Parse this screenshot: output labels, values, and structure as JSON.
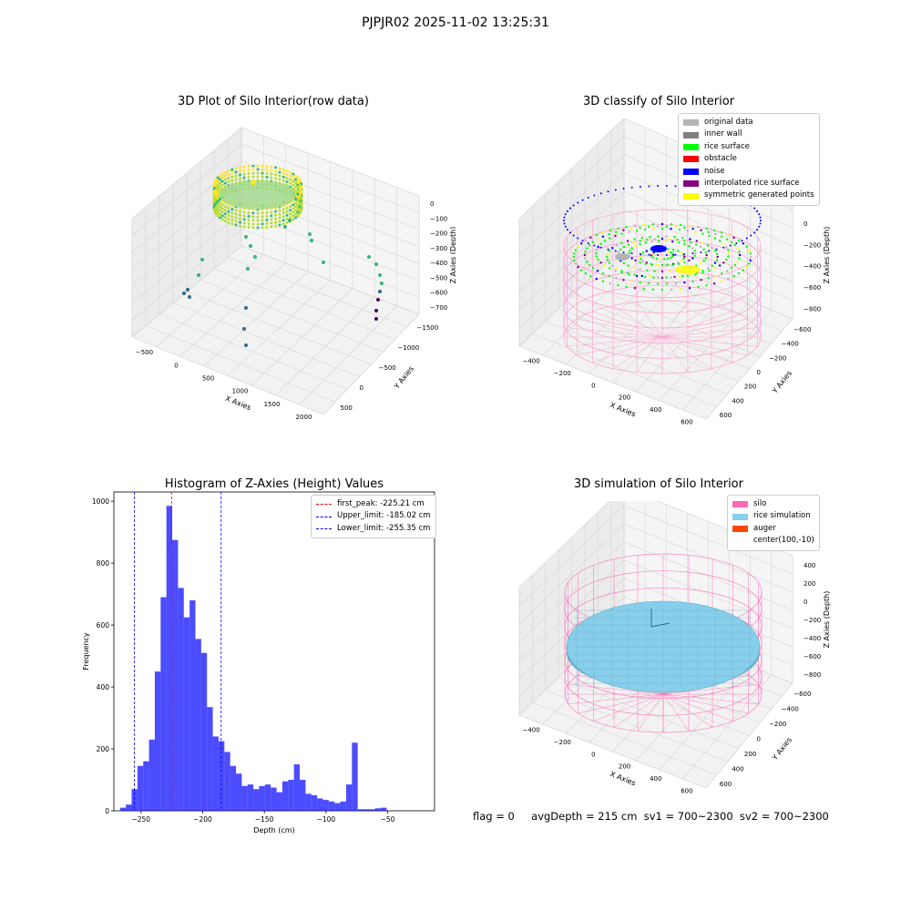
{
  "figure": {
    "suptitle": "PJPJR02 2025-11-02 13:25:31",
    "footer": {
      "flag": "flag = 0",
      "avg_depth": "avgDepth = 215 cm",
      "sv1": "sv1 = 700~2300",
      "sv2": "sv2 = 700~2300"
    }
  },
  "chart_data": [
    {
      "type": "scatter",
      "title": "3D Plot of Silo Interior(row data)",
      "xlabel": "X Axies",
      "ylabel": "Y Axies",
      "zlabel": "Z Axies (Depth)",
      "x_ticks": [
        "−500",
        "0",
        "500",
        "1000",
        "1500",
        "2000"
      ],
      "y_ticks": [
        "500",
        "0",
        "−500",
        "−1000",
        "−1500"
      ],
      "z_ticks": [
        "0",
        "−100",
        "−200",
        "−300",
        "−400",
        "−500",
        "−600",
        "−700"
      ],
      "colormap": [
        "#440154",
        "#31688e",
        "#35b779",
        "#b5de2b",
        "#fde725"
      ]
    },
    {
      "type": "scatter",
      "title": "3D classify of Silo Interior",
      "xlabel": "X Axies",
      "ylabel": "Y Axies",
      "zlabel": "Z Axies (Depth)",
      "x_ticks": [
        "−400",
        "−200",
        "0",
        "200",
        "400",
        "600"
      ],
      "y_ticks": [
        "600",
        "400",
        "200",
        "0",
        "−200",
        "−400",
        "−600"
      ],
      "z_ticks": [
        "200",
        "0",
        "−200",
        "−400",
        "−600",
        "−800"
      ],
      "z_top_partial": "00",
      "legend": [
        {
          "label": "original data",
          "color": "#b3b3b3"
        },
        {
          "label": "inner wall",
          "color": "#808080"
        },
        {
          "label": "rice surface",
          "color": "#00ff00"
        },
        {
          "label": "obstacle",
          "color": "#ff0000"
        },
        {
          "label": "noise",
          "color": "#0000ff"
        },
        {
          "label": "interpolated rice surface",
          "color": "#800080"
        },
        {
          "label": "symmetric generated points",
          "color": "#ffff00"
        }
      ],
      "wire_color": "#ff9fcf"
    },
    {
      "type": "bar",
      "title": "Histogram of Z-Axies (Height) Values",
      "xlabel": "Depth (cm)",
      "ylabel": "Frequency",
      "xlim": [
        -272,
        -12
      ],
      "ylim": [
        0,
        1030
      ],
      "x_ticks": [
        -250,
        -200,
        -150,
        -100,
        -50
      ],
      "x_tick_labels": [
        "−250",
        "−200",
        "−150",
        "−100",
        "−50"
      ],
      "y_ticks": [
        0,
        200,
        400,
        600,
        800,
        1000
      ],
      "bar_color": "#0000ff",
      "bin_start": -267,
      "bin_width": 4.7,
      "values": [
        10,
        20,
        70,
        145,
        160,
        230,
        450,
        690,
        985,
        875,
        720,
        625,
        680,
        555,
        510,
        335,
        240,
        225,
        190,
        145,
        120,
        80,
        85,
        70,
        80,
        85,
        75,
        60,
        95,
        100,
        150,
        100,
        55,
        50,
        40,
        35,
        30,
        25,
        30,
        85,
        220,
        5,
        5,
        5,
        8,
        10
      ],
      "vlines": [
        {
          "x": -225.21,
          "color": "#ff0000",
          "label": "first_peak: -225.21 cm"
        },
        {
          "x": -185.02,
          "color": "#0000ff",
          "label": "Upper_limit: -185.02 cm"
        },
        {
          "x": -255.35,
          "color": "#0000ff",
          "label": "Lower_limit: -255.35 cm"
        }
      ]
    },
    {
      "type": "scatter",
      "title": "3D simulation of Silo Interior",
      "xlabel": "X Axies",
      "ylabel": "Y Axies",
      "zlabel": "Z Axies (Depth)",
      "x_ticks": [
        "−400",
        "−200",
        "0",
        "200",
        "400",
        "600"
      ],
      "y_ticks": [
        "600",
        "400",
        "200",
        "0",
        "−200",
        "−400",
        "−600"
      ],
      "z_ticks": [
        "400",
        "200",
        "0",
        "−200",
        "−400",
        "−600",
        "−800"
      ],
      "legend": [
        {
          "label": "silo",
          "color": "#ff69b4"
        },
        {
          "label": "rice simulation",
          "color": "#87ceeb"
        },
        {
          "label": "auger",
          "color": "#ff4500"
        },
        {
          "label": "center(100,-10)",
          "color": ""
        }
      ]
    }
  ]
}
